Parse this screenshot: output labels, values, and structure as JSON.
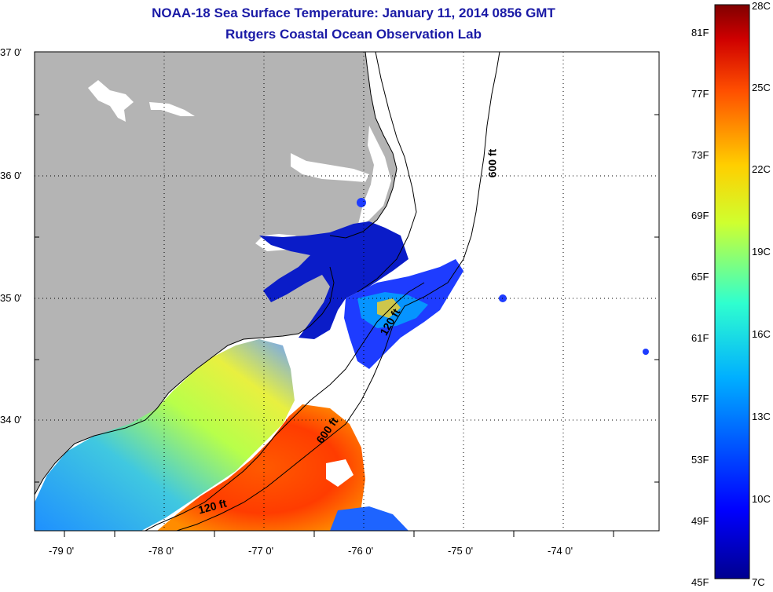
{
  "header": {
    "title": "NOAA-18 Sea Surface Temperature:  January 11, 2014 0856 GMT",
    "subtitle": "Rutgers Coastal Ocean Observation Lab"
  },
  "map": {
    "lat_labels": [
      "37 0'",
      "36 0'",
      "35 0'",
      "34 0'"
    ],
    "lon_labels": [
      "-79 0'",
      "-78 0'",
      "-77 0'",
      "-76 0'",
      "-75 0'",
      "-74 0'"
    ],
    "contours": [
      {
        "label": "600 ft"
      },
      {
        "label": "120 ft"
      },
      {
        "label": "600 ft"
      },
      {
        "label": "120 ft"
      }
    ],
    "land_color": "#b4b4b4",
    "ocean_missing_color": "#ffffff"
  },
  "colorbar": {
    "fahrenheit_labels": [
      "81F",
      "77F",
      "73F",
      "69F",
      "65F",
      "61F",
      "57F",
      "53F",
      "49F",
      "45F"
    ],
    "celsius_labels": [
      "28C",
      "25C",
      "22C",
      "19C",
      "16C",
      "13C",
      "10C",
      "7C"
    ],
    "colors": [
      "#00008f",
      "#0000ff",
      "#00afff",
      "#2fffcf",
      "#cfff2f",
      "#ffcf00",
      "#ff4f00",
      "#cf0000",
      "#800000"
    ]
  }
}
